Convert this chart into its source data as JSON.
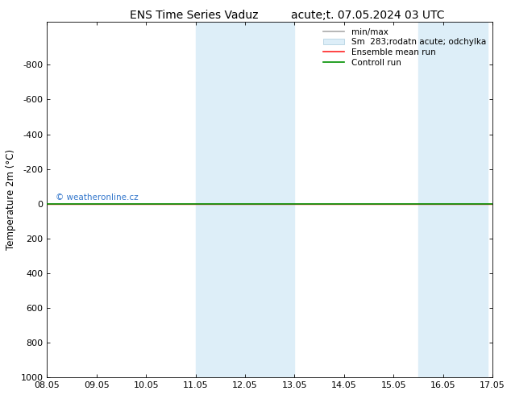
{
  "title_left": "ENS Time Series Vaduz",
  "title_right": "acute;t. 07.05.2024 03 UTC",
  "ylabel": "Temperature 2m (°C)",
  "ylim_bottom": 1000,
  "ylim_top": -1050,
  "yticks": [
    -800,
    -600,
    -400,
    -200,
    0,
    200,
    400,
    600,
    800,
    1000
  ],
  "ytick_labels": [
    "-800",
    "-600",
    "-400",
    "-200",
    "0",
    "200",
    "400",
    "600",
    "800",
    "1000"
  ],
  "xlim_left": 0.0,
  "xlim_right": 9.0,
  "xtick_positions": [
    0,
    1,
    2,
    3,
    4,
    5,
    6,
    7,
    8,
    9
  ],
  "xtick_labels": [
    "08.05",
    "09.05",
    "10.05",
    "11.05",
    "12.05",
    "13.05",
    "14.05",
    "15.05",
    "16.05",
    "17.05"
  ],
  "shaded_bands": [
    {
      "x_start": 3.0,
      "x_end": 5.0
    },
    {
      "x_start": 7.5,
      "x_end": 8.9
    }
  ],
  "shade_color": "#ddeef8",
  "green_line_y": 0,
  "green_line_color": "#009000",
  "red_line_y": 0,
  "red_line_color": "#ff2222",
  "watermark": "© weatheronline.cz",
  "watermark_color": "#3377cc",
  "bg_color": "#ffffff",
  "title_fontsize": 10,
  "axis_label_fontsize": 8.5,
  "tick_fontsize": 8
}
